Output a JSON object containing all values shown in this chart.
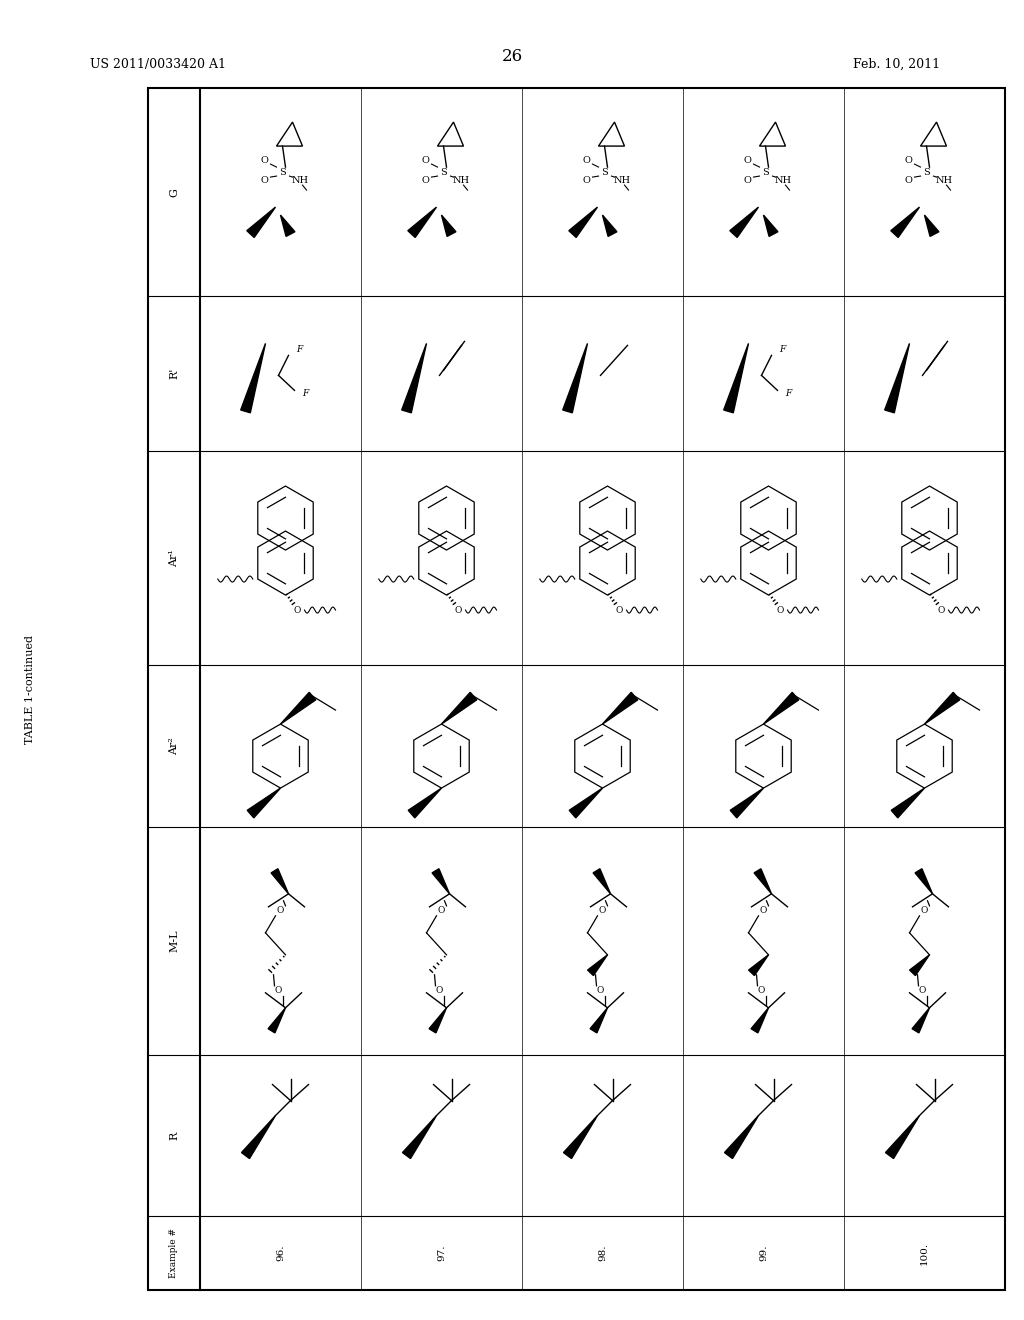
{
  "page_number": "26",
  "patent_number": "US 2011/0033420 A1",
  "patent_date": "Feb. 10, 2011",
  "table_title": "TABLE 1-continued",
  "background_color": "#ffffff",
  "row_labels": [
    "G",
    "R'",
    "Ar¹",
    "Ar²",
    "M-L",
    "R",
    "Example #"
  ],
  "col_labels": [
    "96.",
    "97.",
    "98.",
    "99.",
    "100."
  ],
  "border_color": "#000000",
  "text_color": "#000000"
}
